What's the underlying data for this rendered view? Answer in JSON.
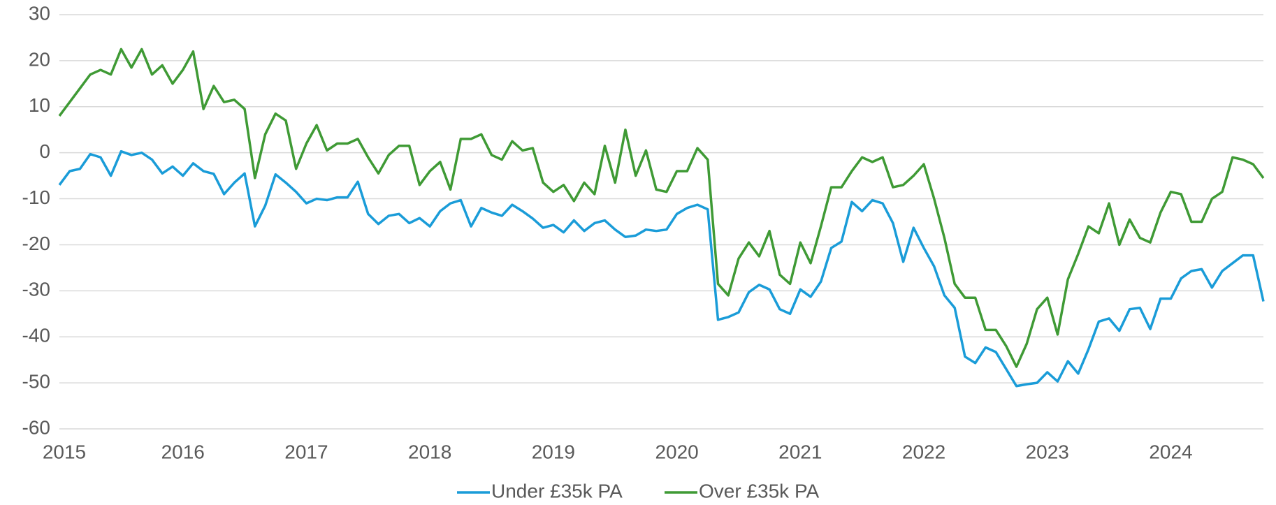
{
  "chart_data": {
    "type": "line",
    "categories": [
      "2015",
      null,
      null,
      null,
      null,
      null,
      null,
      null,
      null,
      null,
      null,
      null,
      "2016",
      null,
      null,
      null,
      null,
      null,
      null,
      null,
      null,
      null,
      null,
      null,
      "2017",
      null,
      null,
      null,
      null,
      null,
      null,
      null,
      null,
      null,
      null,
      null,
      "2018",
      null,
      null,
      null,
      null,
      null,
      null,
      null,
      null,
      null,
      null,
      null,
      "2019",
      null,
      null,
      null,
      null,
      null,
      null,
      null,
      null,
      null,
      null,
      null,
      "2020",
      null,
      null,
      null,
      null,
      null,
      null,
      null,
      null,
      null,
      null,
      null,
      "2021",
      null,
      null,
      null,
      null,
      null,
      null,
      null,
      null,
      null,
      null,
      null,
      "2022",
      null,
      null,
      null,
      null,
      null,
      null,
      null,
      null,
      null,
      null,
      null,
      "2023",
      null,
      null,
      null,
      null,
      null,
      null,
      null,
      null,
      null,
      null,
      null,
      "2024",
      null,
      null,
      null,
      null,
      null,
      null,
      null,
      null,
      null
    ],
    "series": [
      {
        "name": "Under £35k PA",
        "color": "#1a9cd8",
        "values": [
          -7,
          -4,
          -3.5,
          -0.3,
          -1,
          -5,
          0.3,
          -0.5,
          0,
          -1.5,
          -4.5,
          -3,
          -5,
          -2.3,
          -4,
          -4.6,
          -9,
          -6.5,
          -4.5,
          -16,
          -11.5,
          -4.7,
          -6.5,
          -8.5,
          -11,
          -10,
          -10.3,
          -9.7,
          -9.7,
          -6.3,
          -13.3,
          -15.5,
          -13.7,
          -13.3,
          -15.3,
          -14.2,
          -16,
          -12.7,
          -11,
          -10.3,
          -16,
          -12,
          -13,
          -13.7,
          -11.3,
          -12.7,
          -14.3,
          -16.3,
          -15.7,
          -17.3,
          -14.7,
          -17,
          -15.3,
          -14.7,
          -16.7,
          -18.3,
          -18,
          -16.7,
          -17,
          -16.7,
          -13.3,
          -12,
          -11.3,
          -12.3,
          -36.3,
          -35.7,
          -34.7,
          -30.3,
          -28.7,
          -29.7,
          -34,
          -35,
          -29.7,
          -31.3,
          -28,
          -20.7,
          -19.3,
          -10.7,
          -12.7,
          -10.3,
          -11,
          -15.3,
          -23.7,
          -16.3,
          -20.7,
          -24.7,
          -31,
          -33.7,
          -44.3,
          -45.7,
          -42.3,
          -43.3,
          -47,
          -50.7,
          -50.3,
          -50,
          -47.7,
          -49.7,
          -45.3,
          -48,
          -42.7,
          -36.7,
          -36,
          -38.7,
          -34,
          -33.7,
          -38.3,
          -31.7,
          -31.7,
          -27.3,
          -25.7,
          -25.3,
          -29.3,
          -25.7,
          -24,
          -22.3,
          -22.3,
          -32.3
        ]
      },
      {
        "name": "Over £35k PA",
        "color": "#3f9a35",
        "values": [
          8,
          11,
          14,
          17,
          18,
          17,
          22.5,
          18.5,
          22.5,
          17,
          19,
          15,
          18,
          22,
          9.5,
          14.5,
          11,
          11.5,
          9.5,
          -5.5,
          4,
          8.5,
          7,
          -3.5,
          2,
          6,
          0.5,
          2,
          2,
          3,
          -1,
          -4.5,
          -0.5,
          1.5,
          1.5,
          -7,
          -4,
          -2,
          -8,
          3,
          3,
          4,
          -0.5,
          -1.5,
          2.5,
          0.5,
          1,
          -6.5,
          -8.5,
          -7,
          -10.5,
          -6.5,
          -9,
          1.5,
          -6.5,
          5,
          -5,
          0.5,
          -8,
          -8.5,
          -4,
          -4,
          1,
          -1.5,
          -28.5,
          -31,
          -23,
          -19.5,
          -22.5,
          -17,
          -26.5,
          -28.5,
          -19.5,
          -24,
          -16,
          -7.5,
          -7.5,
          -4,
          -1,
          -2,
          -1,
          -7.5,
          -7,
          -5,
          -2.5,
          -10,
          -18.5,
          -28.5,
          -31.5,
          -31.5,
          -38.5,
          -38.5,
          -42,
          -46.5,
          -41.5,
          -34,
          -31.5,
          -39.5,
          -27.5,
          -22,
          -16,
          -17.5,
          -11,
          -20,
          -14.5,
          -18.5,
          -19.5,
          -13,
          -8.5,
          -9,
          -15,
          -15,
          -10,
          -8.5,
          -1,
          -1.5,
          -2.5,
          -5.5
        ]
      }
    ],
    "ylim": [
      -60,
      30
    ],
    "yticks": [
      -60,
      -50,
      -40,
      -30,
      -20,
      -10,
      0,
      10,
      20,
      30
    ],
    "grid": true,
    "legend": "bottom"
  }
}
